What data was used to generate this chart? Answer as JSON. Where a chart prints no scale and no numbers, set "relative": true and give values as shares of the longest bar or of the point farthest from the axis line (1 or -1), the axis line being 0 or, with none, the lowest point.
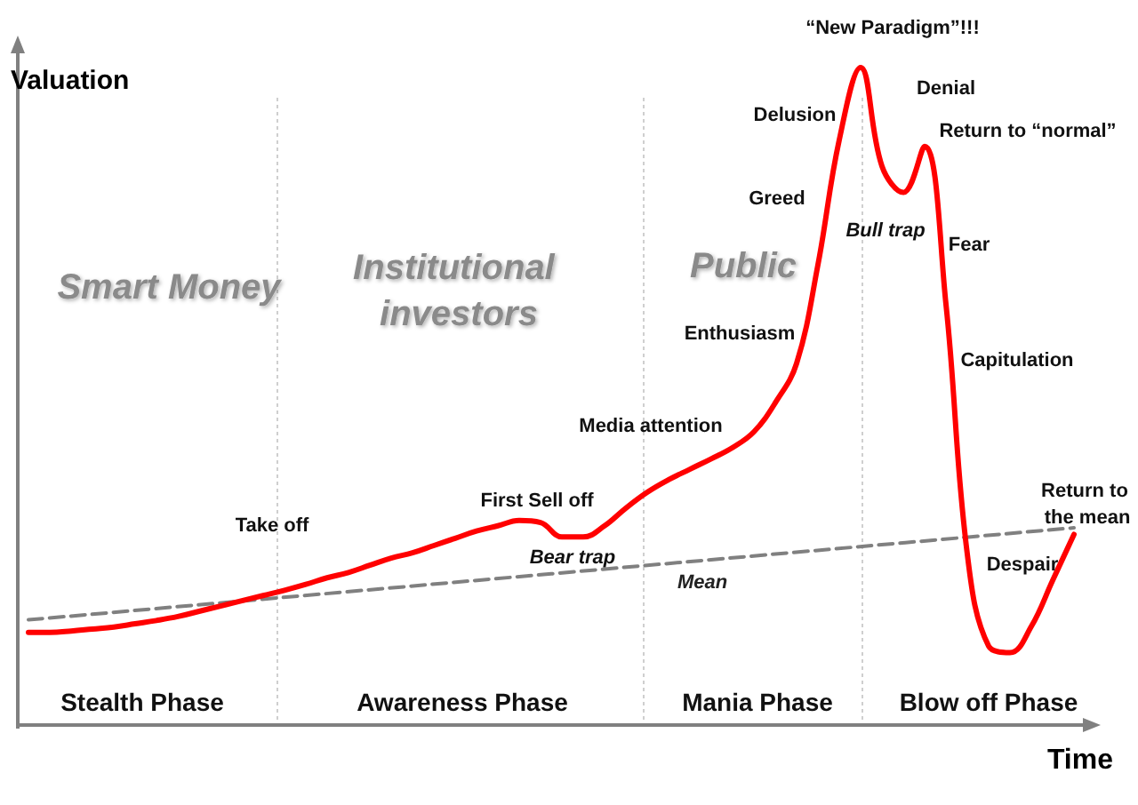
{
  "chart_data": {
    "type": "line",
    "relative": true,
    "xlabel": "Time",
    "ylabel": "Valuation",
    "legend": false,
    "grid": false,
    "marker": "none",
    "categories": [
      null,
      null,
      null,
      null,
      null,
      null,
      null,
      null,
      null,
      null,
      null,
      null,
      null,
      null,
      null,
      null,
      null,
      null,
      null,
      null,
      null,
      null,
      null,
      null,
      null,
      null,
      null,
      null,
      null,
      null,
      null,
      null,
      null,
      null,
      null,
      null,
      null,
      null,
      null,
      null,
      null,
      null,
      null,
      null,
      null,
      null,
      null,
      null,
      null,
      null
    ],
    "series": [
      {
        "color": "#ff0000",
        "line_style": "solid",
        "values": [
          0.141,
          0.141,
          0.143,
          0.146,
          0.149,
          0.154,
          0.159,
          0.165,
          0.173,
          0.181,
          0.189,
          0.197,
          0.205,
          0.214,
          0.224,
          0.232,
          0.243,
          0.254,
          0.262,
          0.273,
          0.284,
          0.295,
          0.303,
          0.311,
          0.308,
          0.286,
          0.286,
          0.303,
          0.33,
          0.354,
          0.373,
          0.389,
          0.405,
          0.422,
          0.446,
          0.49,
          0.55,
          0.7,
          0.89,
          1,
          0.85,
          0.81,
          0.88,
          0.64,
          0.26,
          0.12,
          0.11,
          0.15,
          0.22,
          0.29
        ]
      },
      {
        "name": "Mean",
        "color": "#808080",
        "line_style": "dashed",
        "values": [
          0.16,
          null,
          null,
          null,
          null,
          null,
          null,
          null,
          null,
          null,
          null,
          null,
          null,
          null,
          null,
          null,
          null,
          null,
          null,
          null,
          null,
          null,
          null,
          null,
          null,
          null,
          null,
          null,
          null,
          null,
          null,
          null,
          null,
          null,
          null,
          null,
          null,
          null,
          null,
          null,
          null,
          null,
          null,
          null,
          null,
          null,
          null,
          null,
          null,
          0.3
        ]
      }
    ],
    "annotations": [
      "Smart Money",
      "Institutional investors",
      "Public",
      "Take off",
      "First Sell off",
      "Bear trap",
      "Media attention",
      "Enthusiasm",
      "Greed",
      "Delusion",
      "“New Paradigm”!!!",
      "Denial",
      "Return to “normal”",
      "Bull trap",
      "Fear",
      "Capitulation",
      "Return to the mean",
      "Despair",
      "Stealth Phase",
      "Awareness Phase",
      "Mania Phase",
      "Blow off Phase"
    ]
  }
}
